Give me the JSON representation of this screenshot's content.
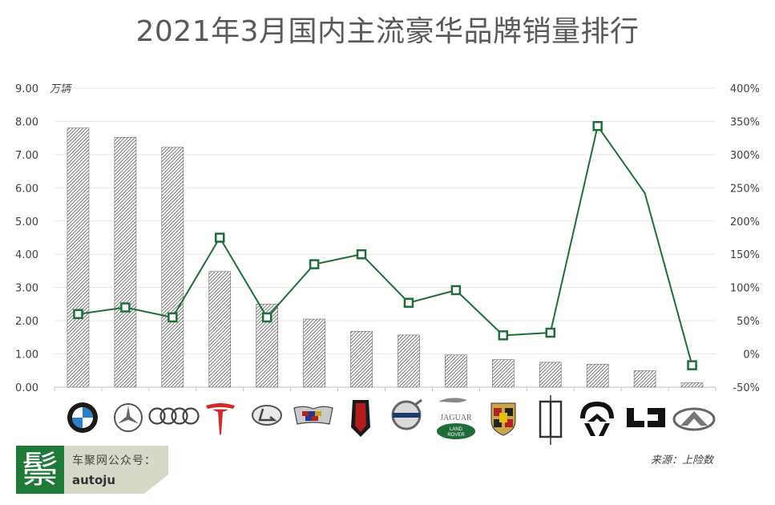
{
  "title": "2021年3月国内主流豪华品牌销量排行",
  "unit_label": "万辆",
  "source": "来源：上险数",
  "badge": {
    "logo_char": "鬃",
    "line1": "车聚网公众号：",
    "line2": "autoju"
  },
  "colors": {
    "line": "#1e6e3a",
    "bar": "#555555",
    "grid": "#e6e6e6",
    "axis": "#bfbfbf"
  },
  "chart_data": {
    "type": "bar",
    "categories": [
      "BMW",
      "Mercedes-Benz",
      "Audi",
      "Tesla",
      "Lexus",
      "Cadillac",
      "Hongqi",
      "Volvo",
      "Jaguar Land Rover",
      "Porsche",
      "Lincoln",
      "NIO",
      "Li Auto",
      "Infiniti"
    ],
    "category_icons": [
      "bmw-logo",
      "mercedes-logo",
      "audi-logo",
      "tesla-logo",
      "lexus-logo",
      "cadillac-logo",
      "hongqi-logo",
      "volvo-logo",
      "jaguar-landrover-logo",
      "porsche-logo",
      "lincoln-logo",
      "nio-logo",
      "liauto-logo",
      "infiniti-logo"
    ],
    "jlr_text": {
      "jaguar": "JAGUAR",
      "land": "LAND",
      "rover": "ROVER"
    },
    "series": [
      {
        "type": "bar",
        "axis": "left",
        "values": [
          7.8,
          7.52,
          7.22,
          3.48,
          2.5,
          2.05,
          1.68,
          1.57,
          0.97,
          0.83,
          0.75,
          0.69,
          0.5,
          0.13
        ]
      },
      {
        "type": "line",
        "axis": "right",
        "values": [
          60,
          70,
          55,
          175,
          55,
          135,
          150,
          77,
          96,
          28,
          32,
          343,
          242,
          -17
        ]
      }
    ],
    "y_left": {
      "min": 0,
      "max": 9,
      "ticks": [
        "0.00",
        "1.00",
        "2.00",
        "3.00",
        "4.00",
        "5.00",
        "6.00",
        "7.00",
        "8.00",
        "9.00"
      ]
    },
    "y_right": {
      "min": -50,
      "max": 400,
      "ticks": [
        "-50%",
        "0%",
        "50%",
        "100%",
        "150%",
        "200%",
        "250%",
        "300%",
        "350%",
        "400%"
      ]
    },
    "grid": true,
    "legend": "none"
  }
}
